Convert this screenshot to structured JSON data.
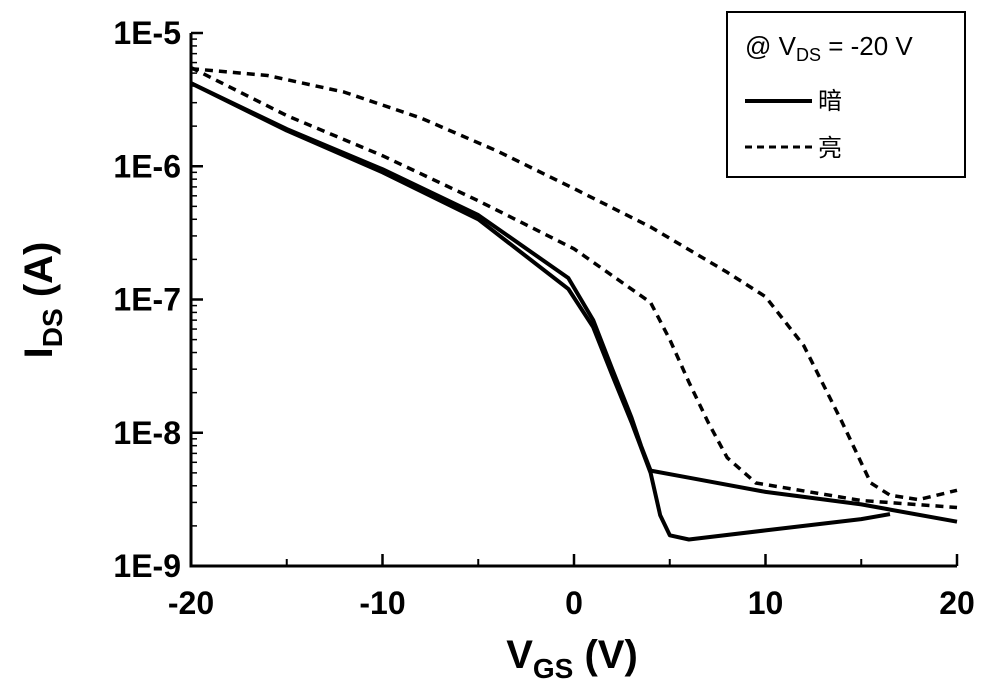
{
  "chart_data": {
    "type": "line",
    "x_axis": {
      "label_main": "V",
      "label_sub": "GS",
      "label_unit": " (V)",
      "range": [
        -20,
        20
      ],
      "ticks": [
        -20,
        -10,
        0,
        10,
        20
      ],
      "tick_labels": [
        "-20",
        "-10",
        "0",
        "10",
        "20"
      ]
    },
    "y_axis": {
      "label_main": "I",
      "label_sub": "DS",
      "label_unit": " (A)",
      "scale": "log",
      "range": [
        1e-09,
        1e-05
      ],
      "ticks": [
        1e-09,
        1e-08,
        1e-07,
        1e-06,
        1e-05
      ],
      "tick_labels": [
        "1E-9",
        "1E-8",
        "1E-7",
        "1E-6",
        "1E-5"
      ]
    },
    "legend": {
      "placement": "top-right",
      "header_prefix": "@ V",
      "header_sub": "DS",
      "header_suffix": " = -20 V"
    },
    "series": [
      {
        "name": "暗",
        "style": "solid",
        "color": "#000000",
        "points": [
          [
            -20,
            4.2e-06
          ],
          [
            -15,
            1.9e-06
          ],
          [
            -10,
            9.5e-07
          ],
          [
            -5,
            4.3e-07
          ],
          [
            -0.3,
            1.45e-07
          ],
          [
            1,
            7e-08
          ],
          [
            2,
            3e-08
          ],
          [
            3,
            1.3e-08
          ],
          [
            3.5,
            8e-09
          ],
          [
            4,
            5.2e-09
          ],
          [
            6,
            4.6e-09
          ],
          [
            10,
            3.6e-09
          ],
          [
            15,
            2.9e-09
          ],
          [
            20,
            2.15e-09
          ]
        ]
      },
      {
        "name": "暗",
        "style": "solid",
        "color": "#000000",
        "points": [
          [
            -20,
            4.2e-06
          ],
          [
            -15,
            1.85e-06
          ],
          [
            -10,
            9e-07
          ],
          [
            -5,
            4e-07
          ],
          [
            -0.3,
            1.2e-07
          ],
          [
            1,
            6.2e-08
          ],
          [
            2,
            2.7e-08
          ],
          [
            3,
            1.2e-08
          ],
          [
            4,
            5e-09
          ],
          [
            4.5,
            2.4e-09
          ],
          [
            5,
            1.7e-09
          ],
          [
            6,
            1.58e-09
          ],
          [
            10,
            1.85e-09
          ],
          [
            15,
            2.25e-09
          ],
          [
            16.5,
            2.45e-09
          ]
        ]
      },
      {
        "name": "亮",
        "style": "dashed",
        "color": "#000000",
        "points": [
          [
            -20,
            5.5e-06
          ],
          [
            -15,
            2.4e-06
          ],
          [
            -10,
            1.2e-06
          ],
          [
            -5,
            5.5e-07
          ],
          [
            0,
            2.4e-07
          ],
          [
            4,
            9.5e-08
          ],
          [
            5,
            5e-08
          ],
          [
            6,
            2.4e-08
          ],
          [
            7,
            1.2e-08
          ],
          [
            8,
            6.5e-09
          ],
          [
            9.5,
            4.2e-09
          ],
          [
            15,
            3.1e-09
          ],
          [
            20,
            2.75e-09
          ]
        ]
      },
      {
        "name": "亮",
        "style": "dashed",
        "color": "#000000",
        "points": [
          [
            -20,
            5.4e-06
          ],
          [
            -16,
            4.8e-06
          ],
          [
            -12,
            3.6e-06
          ],
          [
            -8,
            2.3e-06
          ],
          [
            -4,
            1.3e-06
          ],
          [
            0,
            6.8e-07
          ],
          [
            4,
            3.5e-07
          ],
          [
            8,
            1.6e-07
          ],
          [
            10,
            1.05e-07
          ],
          [
            12,
            4.5e-08
          ],
          [
            14,
            1.2e-08
          ],
          [
            15.5,
            4.2e-09
          ],
          [
            16.5,
            3.4e-09
          ],
          [
            18,
            3.15e-09
          ],
          [
            20,
            3.7e-09
          ]
        ]
      }
    ]
  }
}
